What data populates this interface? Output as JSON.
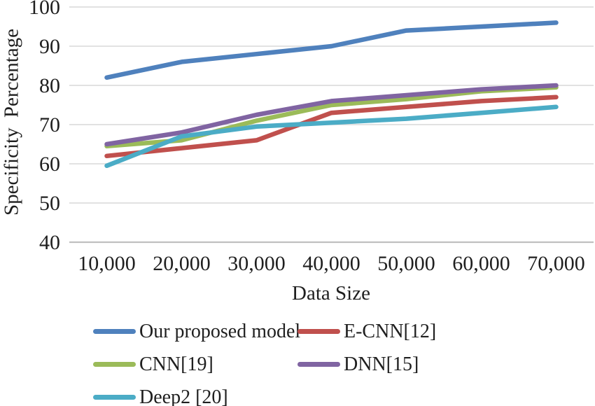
{
  "chart_data": {
    "type": "line",
    "title": "",
    "xlabel": "Data Size",
    "ylabel": "Specificity Percentage",
    "x_categories": [
      "10,000",
      "20,000",
      "30,000",
      "40,000",
      "50,000",
      "60,000",
      "70,000"
    ],
    "y_ticks": [
      "40",
      "50",
      "60",
      "70",
      "80",
      "90",
      "100"
    ],
    "ylim": [
      40,
      100
    ],
    "grid": "horizontal-only",
    "gridline_color": "#D9D9D9",
    "axis_line_color": "#C0C0C0",
    "legend_position": "bottom-left-two-columns",
    "series": [
      {
        "name": "Our proposed model",
        "color": "#4F81BD",
        "values": [
          82,
          86,
          88,
          90,
          94,
          95,
          96
        ]
      },
      {
        "name": "E-CNN[12]",
        "color": "#C0504D",
        "values": [
          62,
          64,
          66,
          73,
          74.5,
          76,
          77
        ]
      },
      {
        "name": "CNN[19]",
        "color": "#9BBB59",
        "values": [
          64.5,
          66,
          71,
          75,
          76.5,
          78.5,
          79.5
        ]
      },
      {
        "name": "DNN[15]",
        "color": "#8064A2",
        "values": [
          65,
          68,
          72.5,
          76,
          77.5,
          79,
          80
        ]
      },
      {
        "name": "Deep2 [20]",
        "color": "#4BACC6",
        "values": [
          59.5,
          67,
          69.5,
          70.5,
          71.5,
          73,
          74.5
        ]
      }
    ]
  }
}
